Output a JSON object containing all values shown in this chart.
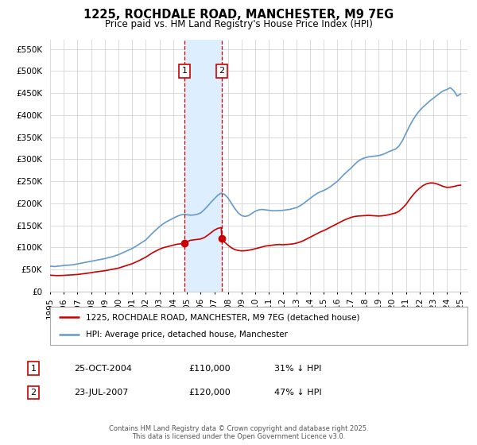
{
  "title": "1225, ROCHDALE ROAD, MANCHESTER, M9 7EG",
  "subtitle": "Price paid vs. HM Land Registry's House Price Index (HPI)",
  "red_label": "1225, ROCHDALE ROAD, MANCHESTER, M9 7EG (detached house)",
  "blue_label": "HPI: Average price, detached house, Manchester",
  "footnote": "Contains HM Land Registry data © Crown copyright and database right 2025.\nThis data is licensed under the Open Government Licence v3.0.",
  "point1_label": "1",
  "point1_date": "25-OCT-2004",
  "point1_price": "£110,000",
  "point1_hpi": "31% ↓ HPI",
  "point1_x": 2004.81,
  "point1_y": 110000,
  "point2_label": "2",
  "point2_date": "23-JUL-2007",
  "point2_price": "£120,000",
  "point2_hpi": "47% ↓ HPI",
  "point2_x": 2007.55,
  "point2_y": 120000,
  "red_color": "#cc0000",
  "blue_color": "#6699cc",
  "shade_color": "#ddeeff",
  "grid_color": "#cccccc",
  "background_color": "#ffffff",
  "ylim": [
    0,
    570000
  ],
  "xlim_start": 1995,
  "xlim_end": 2025.5,
  "yticks": [
    0,
    50000,
    100000,
    150000,
    200000,
    250000,
    300000,
    350000,
    400000,
    450000,
    500000,
    550000
  ],
  "ytick_labels": [
    "£0",
    "£50K",
    "£100K",
    "£150K",
    "£200K",
    "£250K",
    "£300K",
    "£350K",
    "£400K",
    "£450K",
    "£500K",
    "£550K"
  ],
  "xticks": [
    1995,
    1996,
    1997,
    1998,
    1999,
    2000,
    2001,
    2002,
    2003,
    2004,
    2005,
    2006,
    2007,
    2008,
    2009,
    2010,
    2011,
    2012,
    2013,
    2014,
    2015,
    2016,
    2017,
    2018,
    2019,
    2020,
    2021,
    2022,
    2023,
    2024,
    2025
  ],
  "hpi_data": [
    [
      1995.0,
      57000
    ],
    [
      1995.08,
      57200
    ],
    [
      1995.17,
      57000
    ],
    [
      1995.25,
      56800
    ],
    [
      1995.33,
      56500
    ],
    [
      1995.42,
      56800
    ],
    [
      1995.5,
      57200
    ],
    [
      1995.58,
      57500
    ],
    [
      1995.67,
      57800
    ],
    [
      1995.75,
      58000
    ],
    [
      1995.83,
      58200
    ],
    [
      1995.92,
      58500
    ],
    [
      1996.0,
      59000
    ],
    [
      1996.25,
      59500
    ],
    [
      1996.5,
      60000
    ],
    [
      1996.75,
      61000
    ],
    [
      1997.0,
      62500
    ],
    [
      1997.25,
      64000
    ],
    [
      1997.5,
      65500
    ],
    [
      1997.75,
      67000
    ],
    [
      1998.0,
      68500
    ],
    [
      1998.25,
      70000
    ],
    [
      1998.5,
      71500
    ],
    [
      1998.75,
      73000
    ],
    [
      1999.0,
      74500
    ],
    [
      1999.25,
      76500
    ],
    [
      1999.5,
      78500
    ],
    [
      1999.75,
      81000
    ],
    [
      2000.0,
      83500
    ],
    [
      2000.25,
      87000
    ],
    [
      2000.5,
      90500
    ],
    [
      2000.75,
      94000
    ],
    [
      2001.0,
      97500
    ],
    [
      2001.25,
      102000
    ],
    [
      2001.5,
      107000
    ],
    [
      2001.75,
      112000
    ],
    [
      2002.0,
      117000
    ],
    [
      2002.25,
      125000
    ],
    [
      2002.5,
      133000
    ],
    [
      2002.75,
      140000
    ],
    [
      2003.0,
      147000
    ],
    [
      2003.25,
      153000
    ],
    [
      2003.5,
      158000
    ],
    [
      2003.75,
      162000
    ],
    [
      2004.0,
      166000
    ],
    [
      2004.25,
      170000
    ],
    [
      2004.5,
      173000
    ],
    [
      2004.75,
      175000
    ],
    [
      2005.0,
      174000
    ],
    [
      2005.25,
      173000
    ],
    [
      2005.5,
      173500
    ],
    [
      2005.75,
      175000
    ],
    [
      2006.0,
      178000
    ],
    [
      2006.25,
      185000
    ],
    [
      2006.5,
      193000
    ],
    [
      2006.75,
      202000
    ],
    [
      2007.0,
      210000
    ],
    [
      2007.25,
      218000
    ],
    [
      2007.5,
      223000
    ],
    [
      2007.75,
      220000
    ],
    [
      2008.0,
      212000
    ],
    [
      2008.25,
      200000
    ],
    [
      2008.5,
      188000
    ],
    [
      2008.75,
      178000
    ],
    [
      2009.0,
      172000
    ],
    [
      2009.25,
      170000
    ],
    [
      2009.5,
      172000
    ],
    [
      2009.75,
      177000
    ],
    [
      2010.0,
      182000
    ],
    [
      2010.25,
      185000
    ],
    [
      2010.5,
      186000
    ],
    [
      2010.75,
      185000
    ],
    [
      2011.0,
      184000
    ],
    [
      2011.25,
      183000
    ],
    [
      2011.5,
      183000
    ],
    [
      2011.75,
      183500
    ],
    [
      2012.0,
      184000
    ],
    [
      2012.25,
      185000
    ],
    [
      2012.5,
      186000
    ],
    [
      2012.75,
      188000
    ],
    [
      2013.0,
      190000
    ],
    [
      2013.25,
      194000
    ],
    [
      2013.5,
      199000
    ],
    [
      2013.75,
      205000
    ],
    [
      2014.0,
      211000
    ],
    [
      2014.25,
      217000
    ],
    [
      2014.5,
      222000
    ],
    [
      2014.75,
      226000
    ],
    [
      2015.0,
      229000
    ],
    [
      2015.25,
      233000
    ],
    [
      2015.5,
      238000
    ],
    [
      2015.75,
      244000
    ],
    [
      2016.0,
      250000
    ],
    [
      2016.25,
      258000
    ],
    [
      2016.5,
      266000
    ],
    [
      2016.75,
      273000
    ],
    [
      2017.0,
      280000
    ],
    [
      2017.25,
      288000
    ],
    [
      2017.5,
      295000
    ],
    [
      2017.75,
      300000
    ],
    [
      2018.0,
      303000
    ],
    [
      2018.25,
      305000
    ],
    [
      2018.5,
      306000
    ],
    [
      2018.75,
      307000
    ],
    [
      2019.0,
      308000
    ],
    [
      2019.25,
      310000
    ],
    [
      2019.5,
      313000
    ],
    [
      2019.75,
      317000
    ],
    [
      2020.0,
      320000
    ],
    [
      2020.25,
      323000
    ],
    [
      2020.5,
      330000
    ],
    [
      2020.75,
      342000
    ],
    [
      2021.0,
      358000
    ],
    [
      2021.25,
      374000
    ],
    [
      2021.5,
      388000
    ],
    [
      2021.75,
      400000
    ],
    [
      2022.0,
      410000
    ],
    [
      2022.25,
      418000
    ],
    [
      2022.5,
      425000
    ],
    [
      2022.75,
      432000
    ],
    [
      2023.0,
      438000
    ],
    [
      2023.25,
      444000
    ],
    [
      2023.5,
      450000
    ],
    [
      2023.75,
      455000
    ],
    [
      2024.0,
      458000
    ],
    [
      2024.25,
      462000
    ],
    [
      2024.5,
      455000
    ],
    [
      2024.75,
      443000
    ],
    [
      2025.0,
      448000
    ]
  ],
  "red_data": [
    [
      1995.0,
      37000
    ],
    [
      1995.25,
      36500
    ],
    [
      1995.5,
      36000
    ],
    [
      1995.75,
      36200
    ],
    [
      1996.0,
      36500
    ],
    [
      1996.25,
      37000
    ],
    [
      1996.5,
      37500
    ],
    [
      1996.75,
      38000
    ],
    [
      1997.0,
      38500
    ],
    [
      1997.25,
      39500
    ],
    [
      1997.5,
      40500
    ],
    [
      1997.75,
      41500
    ],
    [
      1998.0,
      42500
    ],
    [
      1998.25,
      44000
    ],
    [
      1998.5,
      45000
    ],
    [
      1998.75,
      46000
    ],
    [
      1999.0,
      47000
    ],
    [
      1999.25,
      48500
    ],
    [
      1999.5,
      50000
    ],
    [
      1999.75,
      51500
    ],
    [
      2000.0,
      53000
    ],
    [
      2000.25,
      55500
    ],
    [
      2000.5,
      58000
    ],
    [
      2000.75,
      60500
    ],
    [
      2001.0,
      63000
    ],
    [
      2001.25,
      66500
    ],
    [
      2001.5,
      70000
    ],
    [
      2001.75,
      74000
    ],
    [
      2002.0,
      78000
    ],
    [
      2002.25,
      83000
    ],
    [
      2002.5,
      88000
    ],
    [
      2002.75,
      92000
    ],
    [
      2003.0,
      96000
    ],
    [
      2003.25,
      99000
    ],
    [
      2003.5,
      101000
    ],
    [
      2003.75,
      103000
    ],
    [
      2004.0,
      105000
    ],
    [
      2004.25,
      107000
    ],
    [
      2004.5,
      108000
    ],
    [
      2004.75,
      109000
    ],
    [
      2004.81,
      110000
    ],
    [
      2005.0,
      113000
    ],
    [
      2005.25,
      116000
    ],
    [
      2005.5,
      117000
    ],
    [
      2005.75,
      118000
    ],
    [
      2006.0,
      119000
    ],
    [
      2006.25,
      122000
    ],
    [
      2006.5,
      127000
    ],
    [
      2006.75,
      133000
    ],
    [
      2007.0,
      139000
    ],
    [
      2007.25,
      143000
    ],
    [
      2007.5,
      145000
    ],
    [
      2007.55,
      120000
    ],
    [
      2007.75,
      112000
    ],
    [
      2008.0,
      105000
    ],
    [
      2008.25,
      99000
    ],
    [
      2008.5,
      95000
    ],
    [
      2008.75,
      93000
    ],
    [
      2009.0,
      92000
    ],
    [
      2009.25,
      92500
    ],
    [
      2009.5,
      93500
    ],
    [
      2009.75,
      95000
    ],
    [
      2010.0,
      97000
    ],
    [
      2010.25,
      99000
    ],
    [
      2010.5,
      101000
    ],
    [
      2010.75,
      103000
    ],
    [
      2011.0,
      104000
    ],
    [
      2011.25,
      105000
    ],
    [
      2011.5,
      106000
    ],
    [
      2011.75,
      106500
    ],
    [
      2012.0,
      106000
    ],
    [
      2012.25,
      106500
    ],
    [
      2012.5,
      107000
    ],
    [
      2012.75,
      108000
    ],
    [
      2013.0,
      109500
    ],
    [
      2013.25,
      112000
    ],
    [
      2013.5,
      115000
    ],
    [
      2013.75,
      119000
    ],
    [
      2014.0,
      123000
    ],
    [
      2014.25,
      127000
    ],
    [
      2014.5,
      131000
    ],
    [
      2014.75,
      135000
    ],
    [
      2015.0,
      138000
    ],
    [
      2015.25,
      142000
    ],
    [
      2015.5,
      146000
    ],
    [
      2015.75,
      150000
    ],
    [
      2016.0,
      154000
    ],
    [
      2016.25,
      158000
    ],
    [
      2016.5,
      162000
    ],
    [
      2016.75,
      165000
    ],
    [
      2017.0,
      168000
    ],
    [
      2017.25,
      170000
    ],
    [
      2017.5,
      171000
    ],
    [
      2017.75,
      171500
    ],
    [
      2018.0,
      172000
    ],
    [
      2018.25,
      172500
    ],
    [
      2018.5,
      172000
    ],
    [
      2018.75,
      171500
    ],
    [
      2019.0,
      171000
    ],
    [
      2019.25,
      171500
    ],
    [
      2019.5,
      172500
    ],
    [
      2019.75,
      174000
    ],
    [
      2020.0,
      176000
    ],
    [
      2020.25,
      178000
    ],
    [
      2020.5,
      182000
    ],
    [
      2020.75,
      189000
    ],
    [
      2021.0,
      197000
    ],
    [
      2021.25,
      208000
    ],
    [
      2021.5,
      218000
    ],
    [
      2021.75,
      227000
    ],
    [
      2022.0,
      234000
    ],
    [
      2022.25,
      240000
    ],
    [
      2022.5,
      244000
    ],
    [
      2022.75,
      246000
    ],
    [
      2023.0,
      246000
    ],
    [
      2023.25,
      244000
    ],
    [
      2023.5,
      241000
    ],
    [
      2023.75,
      238000
    ],
    [
      2024.0,
      236000
    ],
    [
      2024.25,
      236500
    ],
    [
      2024.5,
      238000
    ],
    [
      2024.75,
      240000
    ],
    [
      2025.0,
      241000
    ]
  ]
}
